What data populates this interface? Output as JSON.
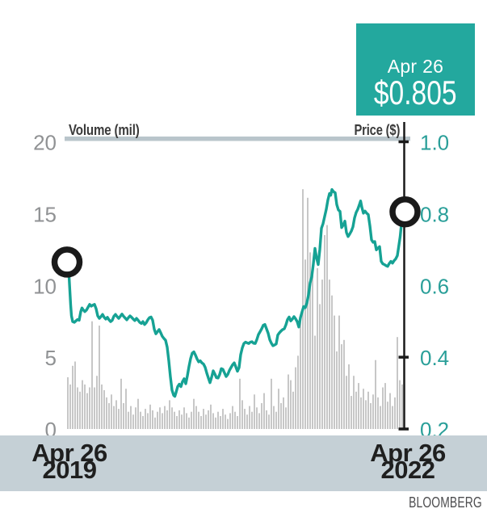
{
  "callout": {
    "date": "Apr 26",
    "price": "$0.805"
  },
  "credit": "BLOOMBERG",
  "dates": {
    "start": {
      "line1": "Apr 26",
      "line2": "2019"
    },
    "end": {
      "line1": "Apr 26",
      "line2": "2022"
    }
  },
  "colors": {
    "accent_teal": "#23a89e",
    "line_teal": "#16a294",
    "label_teal": "#2a9f99",
    "volume_bar": "#c7c7c7",
    "axis_rule": "#b9c5cb",
    "band": "#c5d0d6",
    "volume_label_gray": "#909294",
    "ink": "#1a1a1a"
  },
  "chart_data": {
    "type": "line+bar",
    "title": "",
    "x_range": [
      "Apr 26 2019",
      "Apr 26 2022"
    ],
    "volume_axis": {
      "title": "Volume (mil)",
      "range": [
        0,
        20
      ],
      "ticks": [
        {
          "label": "20",
          "value": 20
        },
        {
          "label": "15",
          "value": 15
        },
        {
          "label": "10",
          "value": 10
        },
        {
          "label": "5",
          "value": 5
        },
        {
          "label": "0",
          "value": 0
        }
      ]
    },
    "price_axis": {
      "title": "Price ($)",
      "range": [
        0.2,
        1.0
      ],
      "ticks": [
        {
          "label": "1.0",
          "value": 1.0,
          "mark": true
        },
        {
          "label": "0.8",
          "value": 0.8,
          "mark": false
        },
        {
          "label": "0.6",
          "value": 0.6,
          "mark": false
        },
        {
          "label": "0.4",
          "value": 0.4,
          "mark": true
        },
        {
          "label": "0.2",
          "value": 0.2,
          "mark": true
        }
      ]
    },
    "markers": [
      {
        "name": "start",
        "t": 0.0,
        "price": 0.665
      },
      {
        "name": "end",
        "t": 1.0,
        "price": 0.805
      }
    ],
    "price_series": [
      [
        0.0,
        0.665
      ],
      [
        0.0036,
        0.655
      ],
      [
        0.006,
        0.625
      ],
      [
        0.0084,
        0.585
      ],
      [
        0.0108,
        0.545
      ],
      [
        0.0131,
        0.515
      ],
      [
        0.0167,
        0.499
      ],
      [
        0.0215,
        0.497
      ],
      [
        0.0263,
        0.501
      ],
      [
        0.0311,
        0.505
      ],
      [
        0.0358,
        0.503
      ],
      [
        0.0406,
        0.527
      ],
      [
        0.0442,
        0.537
      ],
      [
        0.0478,
        0.532
      ],
      [
        0.0526,
        0.527
      ],
      [
        0.0573,
        0.531
      ],
      [
        0.0621,
        0.539
      ],
      [
        0.0669,
        0.547
      ],
      [
        0.0717,
        0.542
      ],
      [
        0.0765,
        0.545
      ],
      [
        0.0812,
        0.547
      ],
      [
        0.086,
        0.535
      ],
      [
        0.0908,
        0.515
      ],
      [
        0.0956,
        0.508
      ],
      [
        0.1004,
        0.513
      ],
      [
        0.1051,
        0.519
      ],
      [
        0.1099,
        0.511
      ],
      [
        0.1147,
        0.506
      ],
      [
        0.1195,
        0.511
      ],
      [
        0.1243,
        0.504
      ],
      [
        0.129,
        0.499
      ],
      [
        0.1338,
        0.503
      ],
      [
        0.1386,
        0.514
      ],
      [
        0.1434,
        0.519
      ],
      [
        0.1481,
        0.513
      ],
      [
        0.1529,
        0.508
      ],
      [
        0.1577,
        0.514
      ],
      [
        0.1625,
        0.52
      ],
      [
        0.1673,
        0.514
      ],
      [
        0.172,
        0.509
      ],
      [
        0.1768,
        0.504
      ],
      [
        0.1816,
        0.51
      ],
      [
        0.1864,
        0.515
      ],
      [
        0.1912,
        0.511
      ],
      [
        0.1959,
        0.506
      ],
      [
        0.2007,
        0.502
      ],
      [
        0.2055,
        0.508
      ],
      [
        0.2103,
        0.503
      ],
      [
        0.2151,
        0.497
      ],
      [
        0.2198,
        0.494
      ],
      [
        0.2246,
        0.499
      ],
      [
        0.2294,
        0.491
      ],
      [
        0.2342,
        0.496
      ],
      [
        0.2389,
        0.504
      ],
      [
        0.2437,
        0.51
      ],
      [
        0.2485,
        0.512
      ],
      [
        0.2533,
        0.503
      ],
      [
        0.2581,
        0.478
      ],
      [
        0.2628,
        0.465
      ],
      [
        0.2676,
        0.471
      ],
      [
        0.2724,
        0.477
      ],
      [
        0.2772,
        0.468
      ],
      [
        0.282,
        0.458
      ],
      [
        0.2867,
        0.452
      ],
      [
        0.2915,
        0.447
      ],
      [
        0.2963,
        0.428
      ],
      [
        0.3011,
        0.39
      ],
      [
        0.3059,
        0.345
      ],
      [
        0.3106,
        0.308
      ],
      [
        0.3154,
        0.294
      ],
      [
        0.319,
        0.291
      ],
      [
        0.3226,
        0.302
      ],
      [
        0.3274,
        0.318
      ],
      [
        0.3321,
        0.325
      ],
      [
        0.3369,
        0.318
      ],
      [
        0.3417,
        0.332
      ],
      [
        0.3465,
        0.34
      ],
      [
        0.3513,
        0.326
      ],
      [
        0.356,
        0.348
      ],
      [
        0.3608,
        0.374
      ],
      [
        0.3656,
        0.396
      ],
      [
        0.3704,
        0.411
      ],
      [
        0.3751,
        0.415
      ],
      [
        0.3799,
        0.406
      ],
      [
        0.3847,
        0.395
      ],
      [
        0.3895,
        0.387
      ],
      [
        0.3943,
        0.39
      ],
      [
        0.399,
        0.384
      ],
      [
        0.4038,
        0.381
      ],
      [
        0.4086,
        0.372
      ],
      [
        0.4134,
        0.356
      ],
      [
        0.4182,
        0.342
      ],
      [
        0.4229,
        0.329
      ],
      [
        0.4277,
        0.344
      ],
      [
        0.4325,
        0.362
      ],
      [
        0.4373,
        0.353
      ],
      [
        0.4421,
        0.343
      ],
      [
        0.4468,
        0.342
      ],
      [
        0.4516,
        0.352
      ],
      [
        0.4564,
        0.368
      ],
      [
        0.4612,
        0.366
      ],
      [
        0.4659,
        0.356
      ],
      [
        0.4707,
        0.346
      ],
      [
        0.4755,
        0.352
      ],
      [
        0.4803,
        0.363
      ],
      [
        0.4851,
        0.371
      ],
      [
        0.4898,
        0.379
      ],
      [
        0.4946,
        0.384
      ],
      [
        0.4994,
        0.373
      ],
      [
        0.5042,
        0.361
      ],
      [
        0.509,
        0.371
      ],
      [
        0.5137,
        0.407
      ],
      [
        0.5185,
        0.426
      ],
      [
        0.5233,
        0.438
      ],
      [
        0.5281,
        0.442
      ],
      [
        0.5329,
        0.44
      ],
      [
        0.5376,
        0.438
      ],
      [
        0.5424,
        0.442
      ],
      [
        0.5472,
        0.443
      ],
      [
        0.552,
        0.439
      ],
      [
        0.5568,
        0.438
      ],
      [
        0.5615,
        0.449
      ],
      [
        0.5663,
        0.463
      ],
      [
        0.5711,
        0.471
      ],
      [
        0.5759,
        0.479
      ],
      [
        0.5806,
        0.489
      ],
      [
        0.5854,
        0.491
      ],
      [
        0.5902,
        0.479
      ],
      [
        0.595,
        0.467
      ],
      [
        0.5998,
        0.449
      ],
      [
        0.6045,
        0.439
      ],
      [
        0.6093,
        0.432
      ],
      [
        0.6141,
        0.434
      ],
      [
        0.6189,
        0.437
      ],
      [
        0.6237,
        0.462
      ],
      [
        0.6284,
        0.468
      ],
      [
        0.6332,
        0.473
      ],
      [
        0.638,
        0.477
      ],
      [
        0.6428,
        0.479
      ],
      [
        0.6476,
        0.49
      ],
      [
        0.6523,
        0.505
      ],
      [
        0.6571,
        0.512
      ],
      [
        0.6619,
        0.501
      ],
      [
        0.6667,
        0.506
      ],
      [
        0.6714,
        0.513
      ],
      [
        0.6762,
        0.507
      ],
      [
        0.681,
        0.499
      ],
      [
        0.6858,
        0.484
      ],
      [
        0.6906,
        0.51
      ],
      [
        0.6953,
        0.526
      ],
      [
        0.7001,
        0.541
      ],
      [
        0.7049,
        0.538
      ],
      [
        0.7097,
        0.551
      ],
      [
        0.7145,
        0.574
      ],
      [
        0.7192,
        0.607
      ],
      [
        0.724,
        0.624
      ],
      [
        0.7288,
        0.66
      ],
      [
        0.7336,
        0.703
      ],
      [
        0.7384,
        0.676
      ],
      [
        0.7431,
        0.658
      ],
      [
        0.7479,
        0.7
      ],
      [
        0.7527,
        0.759
      ],
      [
        0.7575,
        0.772
      ],
      [
        0.7622,
        0.792
      ],
      [
        0.767,
        0.812
      ],
      [
        0.7718,
        0.838
      ],
      [
        0.7766,
        0.856
      ],
      [
        0.7802,
        0.851
      ],
      [
        0.7838,
        0.867
      ],
      [
        0.7885,
        0.861
      ],
      [
        0.7933,
        0.858
      ],
      [
        0.7981,
        0.825
      ],
      [
        0.8029,
        0.81
      ],
      [
        0.8076,
        0.806
      ],
      [
        0.8124,
        0.761
      ],
      [
        0.8172,
        0.768
      ],
      [
        0.822,
        0.779
      ],
      [
        0.8268,
        0.747
      ],
      [
        0.8315,
        0.736
      ],
      [
        0.8363,
        0.743
      ],
      [
        0.8411,
        0.751
      ],
      [
        0.8459,
        0.763
      ],
      [
        0.8507,
        0.788
      ],
      [
        0.8554,
        0.803
      ],
      [
        0.8602,
        0.812
      ],
      [
        0.865,
        0.825
      ],
      [
        0.8686,
        0.835
      ],
      [
        0.8722,
        0.818
      ],
      [
        0.8769,
        0.801
      ],
      [
        0.8817,
        0.807
      ],
      [
        0.8865,
        0.801
      ],
      [
        0.8913,
        0.797
      ],
      [
        0.8961,
        0.766
      ],
      [
        0.9008,
        0.727
      ],
      [
        0.9056,
        0.72
      ],
      [
        0.9104,
        0.722
      ],
      [
        0.9152,
        0.699
      ],
      [
        0.92,
        0.704
      ],
      [
        0.9247,
        0.708
      ],
      [
        0.9295,
        0.667
      ],
      [
        0.9343,
        0.66
      ],
      [
        0.9391,
        0.658
      ],
      [
        0.9438,
        0.655
      ],
      [
        0.9486,
        0.653
      ],
      [
        0.9534,
        0.661
      ],
      [
        0.9582,
        0.667
      ],
      [
        0.963,
        0.662
      ],
      [
        0.9677,
        0.669
      ],
      [
        0.9725,
        0.674
      ],
      [
        0.9773,
        0.683
      ],
      [
        0.9821,
        0.713
      ],
      [
        0.9857,
        0.736
      ],
      [
        0.9892,
        0.77
      ],
      [
        0.994,
        0.784
      ],
      [
        1.0,
        0.805
      ]
    ],
    "volume_values": [
      3.6,
      3.1,
      4.4,
      4.7,
      2.9,
      2.6,
      3.4,
      3.1,
      2.5,
      2.9,
      7.5,
      2.9,
      3.7,
      7.2,
      3.1,
      2.7,
      2.2,
      1.8,
      2.4,
      1.6,
      2.0,
      1.4,
      3.5,
      1.8,
      2.8,
      1.2,
      1.6,
      1.0,
      1.5,
      2.1,
      1.2,
      0.9,
      1.4,
      1.1,
      1.7,
      1.3,
      0.8,
      1.2,
      1.5,
      1.1,
      1.6,
      1.3,
      2.0,
      1.5,
      1.2,
      0.9,
      1.3,
      1.0,
      1.5,
      1.1,
      0.8,
      1.2,
      2.1,
      1.6,
      1.2,
      0.9,
      1.4,
      1.0,
      1.3,
      1.7,
      1.1,
      0.8,
      1.2,
      0.9,
      1.4,
      1.0,
      0.7,
      1.1,
      1.6,
      1.2,
      0.9,
      3.5,
      2.0,
      1.4,
      1.0,
      1.6,
      1.2,
      2.4,
      1.5,
      1.1,
      1.8,
      2.5,
      1.3,
      1.0,
      3.5,
      1.6,
      1.2,
      2.8,
      1.8,
      2.2,
      1.5,
      3.8,
      3.4,
      2.6,
      4.3,
      5.1,
      7.6,
      16.7,
      11.8,
      16.1,
      12.3,
      11.0,
      6.5,
      11.2,
      8.7,
      10.4,
      13.5,
      14.2,
      10.4,
      9.3,
      7.9,
      5.4,
      7.9,
      5.9,
      6.2,
      3.7,
      4.5,
      2.3,
      3.7,
      2.6,
      3.2,
      2.2,
      2.8,
      2.0,
      2.6,
      1.8,
      2.4,
      4.8,
      2.2,
      1.6,
      2.9,
      3.2,
      1.9,
      2.5,
      1.6,
      2.2,
      6.4,
      3.4,
      3.1
    ]
  }
}
